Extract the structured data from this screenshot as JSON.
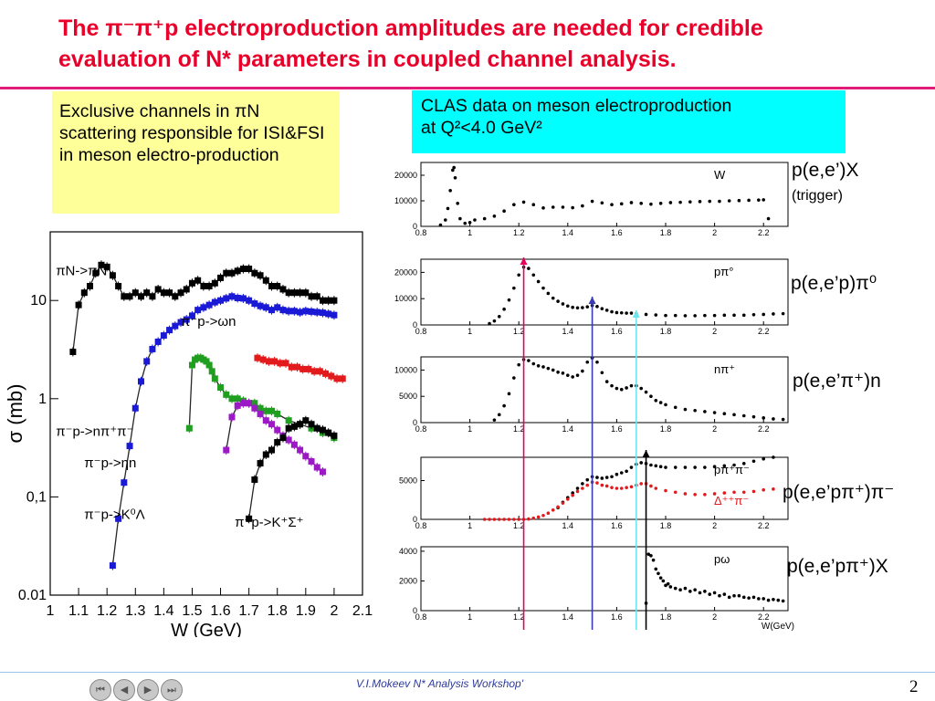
{
  "title": {
    "line1": "The π⁻π⁺p electroproduction amplitudes are needed  for  credible",
    "line2": "evaluation of N* parameters in coupled channel analysis."
  },
  "callouts": {
    "left": "Exclusive channels  in πN scattering  responsible for ISI&FSI in  meson electro-production",
    "right_line1": "CLAS data on meson electroproduction",
    "right_line2": "at Q²<4.0 GeV²"
  },
  "side_labels": {
    "p1": "p(e,e’)X",
    "p1_sub": "(trigger)",
    "p2": "p(e,e’p)π⁰",
    "p3": "p(e,e’π⁺)n",
    "p4": "p(e,e’pπ⁺)π⁻",
    "p5": "p(e,e’pπ⁺)X"
  },
  "footer": {
    "text": "V.I.Mokeev  N* Analysis Workshop'",
    "page": "2"
  },
  "colors": {
    "title": "#e8002a",
    "rule": "#e01b7c",
    "yellow_box": "#ffff99",
    "cyan_box": "#00ffff",
    "marker_pink": "#e8005a",
    "marker_blue": "#3b3bb0",
    "marker_cyan": "#6ee6f0",
    "marker_black": "#000000"
  },
  "chart_data": [
    {
      "type": "scatter",
      "panel": "piN-cross-sections",
      "title": "",
      "xlabel": "W (GeV)",
      "ylabel": "σ (mb)",
      "xlim": [
        1.0,
        2.1
      ],
      "ylim": [
        0.01,
        50
      ],
      "yscale": "log",
      "xticks": [
        "1",
        "1.1",
        "1.2",
        "1.3",
        "1.4",
        "1.5",
        "1.6",
        "1.7",
        "1.8",
        "1.9",
        "2",
        "2.1"
      ],
      "yticks": [
        "0.01",
        "0,1",
        "1",
        "10"
      ],
      "ytick_values": [
        0.01,
        0.1,
        1,
        10
      ],
      "series": [
        {
          "name": "πN->πN",
          "color": "#000000",
          "x": [
            1.08,
            1.1,
            1.12,
            1.14,
            1.16,
            1.18,
            1.2,
            1.22,
            1.24,
            1.26,
            1.28,
            1.3,
            1.32,
            1.34,
            1.36,
            1.38,
            1.4,
            1.42,
            1.44,
            1.46,
            1.48,
            1.5,
            1.52,
            1.54,
            1.56,
            1.58,
            1.6,
            1.62,
            1.64,
            1.66,
            1.68,
            1.7,
            1.72,
            1.74,
            1.76,
            1.78,
            1.8,
            1.82,
            1.84,
            1.86,
            1.88,
            1.9,
            1.92,
            1.94,
            1.96,
            1.98,
            2.0
          ],
          "y": [
            3,
            9,
            12,
            14,
            19,
            23,
            22,
            18,
            14,
            11,
            11,
            12,
            11,
            12,
            11,
            13,
            12,
            12,
            11,
            12,
            13,
            15,
            16,
            14,
            14,
            15,
            17,
            19,
            19,
            20,
            21,
            21,
            19,
            18,
            16,
            14,
            14,
            13,
            12,
            12,
            12,
            12,
            11,
            11,
            10,
            10,
            10
          ]
        },
        {
          "name": "π⁻p->nπ⁺π⁻",
          "color": "#1a1ad6",
          "x": [
            1.22,
            1.24,
            1.26,
            1.28,
            1.3,
            1.32,
            1.34,
            1.36,
            1.38,
            1.4,
            1.42,
            1.44,
            1.46,
            1.48,
            1.5,
            1.52,
            1.54,
            1.56,
            1.58,
            1.6,
            1.62,
            1.64,
            1.66,
            1.68,
            1.7,
            1.72,
            1.74,
            1.76,
            1.78,
            1.8,
            1.82,
            1.84,
            1.86,
            1.88,
            1.9,
            1.92,
            1.94,
            1.96,
            1.98,
            2.0
          ],
          "y": [
            0.02,
            0.06,
            0.14,
            0.33,
            0.8,
            1.5,
            2.4,
            3.2,
            3.8,
            4.4,
            5,
            5.5,
            6,
            6.4,
            7,
            8,
            8.5,
            9,
            9.6,
            10,
            10.5,
            11,
            10.6,
            10.5,
            10,
            9.3,
            8.8,
            8.5,
            8,
            8.5,
            8,
            7.8,
            7.8,
            7.6,
            7.8,
            7.7,
            7.6,
            7.5,
            7.3,
            7.1
          ]
        },
        {
          "name": "π⁻p->ωn",
          "color": "#e31a1c",
          "x": [
            1.73,
            1.75,
            1.77,
            1.79,
            1.81,
            1.83,
            1.85,
            1.87,
            1.89,
            1.91,
            1.93,
            1.95,
            1.97,
            1.99,
            2.01,
            2.03
          ],
          "y": [
            2.6,
            2.5,
            2.4,
            2.4,
            2.3,
            2.3,
            2.1,
            2.1,
            2.0,
            2.0,
            1.9,
            1.9,
            1.8,
            1.7,
            1.6,
            1.6
          ]
        },
        {
          "name": "π⁻p->ηn",
          "color": "#1f9e1f",
          "x": [
            1.49,
            1.5,
            1.51,
            1.52,
            1.53,
            1.54,
            1.55,
            1.56,
            1.57,
            1.58,
            1.6,
            1.62,
            1.64,
            1.66,
            1.68,
            1.7,
            1.72,
            1.74,
            1.76,
            1.78,
            1.8,
            1.84,
            1.88,
            1.92,
            1.96,
            2.0
          ],
          "y": [
            0.5,
            2.2,
            2.5,
            2.6,
            2.6,
            2.5,
            2.4,
            2.2,
            1.9,
            1.6,
            1.3,
            1.1,
            1.0,
            1.0,
            0.95,
            0.9,
            0.9,
            0.8,
            0.75,
            0.75,
            0.7,
            0.6,
            0.55,
            0.5,
            0.45,
            0.4
          ]
        },
        {
          "name": "π⁻p->K⁰Λ",
          "color": "#9b1ac6",
          "x": [
            1.62,
            1.64,
            1.66,
            1.68,
            1.7,
            1.72,
            1.74,
            1.76,
            1.78,
            1.8,
            1.82,
            1.84,
            1.86,
            1.88,
            1.9,
            1.92,
            1.94,
            1.96
          ],
          "y": [
            0.3,
            0.65,
            0.85,
            0.9,
            0.9,
            0.8,
            0.7,
            0.6,
            0.55,
            0.48,
            0.42,
            0.38,
            0.34,
            0.3,
            0.26,
            0.23,
            0.2,
            0.18
          ]
        },
        {
          "name": "π⁺p->K⁺Σ⁺",
          "color": "#000000",
          "x": [
            1.7,
            1.72,
            1.74,
            1.76,
            1.78,
            1.8,
            1.82,
            1.84,
            1.86,
            1.88,
            1.9,
            1.92,
            1.94,
            1.96,
            1.98,
            2.0
          ],
          "y": [
            0.06,
            0.15,
            0.22,
            0.27,
            0.3,
            0.36,
            0.4,
            0.5,
            0.52,
            0.55,
            0.6,
            0.55,
            0.5,
            0.48,
            0.45,
            0.42
          ]
        }
      ],
      "annotations": [
        "πN->πN",
        "π⁻p->ωn",
        "π⁻p->nπ⁺π⁻",
        "π⁻p->ηn",
        "π⁻p->K⁰Λ",
        "π⁺p->K⁺Σ⁺"
      ]
    },
    {
      "type": "scatter",
      "panel": "W",
      "label": "W",
      "xlim": [
        0.8,
        2.3
      ],
      "ylim": [
        0,
        25000
      ],
      "xticks": [
        "0.8",
        "1",
        "1.2",
        "1.4",
        "1.6",
        "1.8",
        "2",
        "2.2"
      ],
      "yticks": [
        "0",
        "10000",
        "20000"
      ],
      "ytick_values": [
        0,
        10000,
        20000
      ],
      "x": [
        0.88,
        0.9,
        0.91,
        0.92,
        0.93,
        0.935,
        0.94,
        0.95,
        0.96,
        0.98,
        1.0,
        1.02,
        1.06,
        1.1,
        1.14,
        1.18,
        1.22,
        1.26,
        1.3,
        1.34,
        1.38,
        1.42,
        1.46,
        1.5,
        1.54,
        1.58,
        1.62,
        1.66,
        1.7,
        1.74,
        1.78,
        1.82,
        1.86,
        1.9,
        1.94,
        1.98,
        2.02,
        2.06,
        2.1,
        2.14,
        2.18,
        2.2,
        2.22
      ],
      "y": [
        500,
        2500,
        7000,
        14000,
        22000,
        23000,
        19000,
        9000,
        3000,
        1200,
        1500,
        2500,
        3000,
        4000,
        6000,
        8500,
        9500,
        8500,
        7200,
        7500,
        7500,
        7300,
        8000,
        9800,
        9200,
        8500,
        8800,
        9300,
        9000,
        8700,
        9000,
        9300,
        9400,
        9600,
        9700,
        9800,
        9800,
        10000,
        10100,
        10200,
        10300,
        10400,
        3000
      ]
    },
    {
      "type": "scatter",
      "panel": "pπ⁰",
      "label": "pπ°",
      "xlim": [
        0.8,
        2.3
      ],
      "ylim": [
        0,
        25000
      ],
      "xticks": [
        "0.8",
        "1",
        "1.2",
        "1.4",
        "1.6",
        "1.8",
        "2",
        "2.2"
      ],
      "yticks": [
        "0",
        "10000",
        "20000"
      ],
      "ytick_values": [
        0,
        10000,
        20000
      ],
      "x": [
        1.08,
        1.1,
        1.12,
        1.14,
        1.16,
        1.18,
        1.2,
        1.22,
        1.24,
        1.26,
        1.28,
        1.3,
        1.32,
        1.34,
        1.36,
        1.38,
        1.4,
        1.42,
        1.44,
        1.46,
        1.48,
        1.5,
        1.52,
        1.54,
        1.56,
        1.58,
        1.6,
        1.62,
        1.64,
        1.66,
        1.68,
        1.72,
        1.76,
        1.8,
        1.84,
        1.88,
        1.92,
        1.96,
        2.0,
        2.04,
        2.08,
        2.12,
        2.16,
        2.2,
        2.24,
        2.28
      ],
      "y": [
        500,
        1500,
        3200,
        6000,
        9500,
        14000,
        19000,
        22000,
        21500,
        19000,
        16500,
        14000,
        12000,
        10200,
        9000,
        8000,
        7200,
        6700,
        6500,
        6600,
        6900,
        7400,
        7000,
        6200,
        5600,
        5000,
        4700,
        4600,
        4500,
        4500,
        4300,
        4000,
        3800,
        3600,
        3600,
        3500,
        3500,
        3600,
        3600,
        3700,
        3700,
        3700,
        3900,
        4000,
        4200,
        4300
      ]
    },
    {
      "type": "scatter",
      "panel": "nπ⁺",
      "label": "nπ⁺",
      "xlim": [
        0.8,
        2.3
      ],
      "ylim": [
        0,
        12500
      ],
      "xticks": [
        "0.8",
        "1",
        "1.2",
        "1.4",
        "1.6",
        "1.8",
        "2",
        "2.2"
      ],
      "yticks": [
        "0",
        "5000",
        "10000"
      ],
      "ytick_values": [
        0,
        5000,
        10000
      ],
      "x": [
        1.1,
        1.12,
        1.14,
        1.16,
        1.18,
        1.2,
        1.22,
        1.24,
        1.26,
        1.28,
        1.3,
        1.32,
        1.34,
        1.36,
        1.38,
        1.4,
        1.42,
        1.44,
        1.46,
        1.48,
        1.5,
        1.52,
        1.54,
        1.56,
        1.58,
        1.6,
        1.62,
        1.64,
        1.66,
        1.68,
        1.7,
        1.72,
        1.74,
        1.76,
        1.78,
        1.8,
        1.84,
        1.88,
        1.92,
        1.96,
        2.0,
        2.04,
        2.08,
        2.12,
        2.16,
        2.2,
        2.24,
        2.28
      ],
      "y": [
        500,
        1500,
        3200,
        5500,
        8500,
        11000,
        12000,
        11800,
        11200,
        10800,
        10600,
        10300,
        10000,
        9600,
        9400,
        9000,
        8700,
        9000,
        9800,
        11500,
        12300,
        11500,
        9500,
        7800,
        7000,
        6500,
        6300,
        6600,
        7000,
        7000,
        6500,
        5800,
        5000,
        4200,
        3800,
        3400,
        2900,
        2500,
        2300,
        2100,
        1900,
        1700,
        1500,
        1300,
        1100,
        900,
        700,
        600
      ]
    },
    {
      "type": "scatter",
      "panel": "pπ⁺π⁻",
      "label": "pπ⁺π⁻",
      "xlim": [
        0.8,
        2.3
      ],
      "ylim": [
        0,
        8000
      ],
      "xticks": [
        "0.8",
        "1",
        "1.2",
        "1.4",
        "1.6",
        "1.8",
        "2",
        "2.2"
      ],
      "yticks": [
        "0",
        "5000"
      ],
      "ytick_values": [
        0,
        5000
      ],
      "series": [
        {
          "name": "pπ⁺π⁻",
          "color": "#000000",
          "x": [
            1.36,
            1.38,
            1.4,
            1.42,
            1.44,
            1.46,
            1.48,
            1.5,
            1.52,
            1.54,
            1.56,
            1.58,
            1.6,
            1.62,
            1.64,
            1.66,
            1.68,
            1.7,
            1.72,
            1.74,
            1.76,
            1.78,
            1.8,
            1.84,
            1.88,
            1.92,
            1.96,
            2.0,
            2.04,
            2.08,
            2.12,
            2.16,
            2.2,
            2.24
          ],
          "y": [
            1500,
            2200,
            2800,
            3400,
            4000,
            4600,
            5100,
            5500,
            5400,
            5300,
            5400,
            5500,
            5800,
            6000,
            6200,
            6700,
            7100,
            7300,
            7200,
            7000,
            6900,
            6800,
            6700,
            6700,
            6700,
            6700,
            6700,
            6800,
            6900,
            7000,
            7200,
            7500,
            7800,
            8000
          ]
        },
        {
          "name": "Δ⁺⁺π⁻",
          "color": "#e31a1c",
          "x": [
            1.06,
            1.08,
            1.1,
            1.12,
            1.14,
            1.16,
            1.18,
            1.2,
            1.22,
            1.24,
            1.26,
            1.28,
            1.3,
            1.32,
            1.34,
            1.36,
            1.38,
            1.4,
            1.42,
            1.44,
            1.46,
            1.48,
            1.5,
            1.52,
            1.54,
            1.56,
            1.58,
            1.6,
            1.62,
            1.64,
            1.66,
            1.68,
            1.7,
            1.72,
            1.74,
            1.76,
            1.8,
            1.84,
            1.88,
            1.92,
            1.96,
            2.0,
            2.04,
            2.08,
            2.12,
            2.16,
            2.2,
            2.24
          ],
          "y": [
            0,
            0,
            0,
            0,
            0,
            0,
            0,
            0,
            0,
            50,
            150,
            300,
            500,
            800,
            1200,
            1600,
            2100,
            2600,
            3100,
            3600,
            4000,
            4400,
            4800,
            4700,
            4400,
            4300,
            4100,
            4000,
            4000,
            4100,
            4200,
            4400,
            4600,
            4600,
            4300,
            4000,
            3700,
            3500,
            3300,
            3200,
            3200,
            3300,
            3400,
            3500,
            3500,
            3600,
            3800,
            3900
          ]
        }
      ],
      "legend": [
        "pπ⁺π⁻",
        "Δ⁺⁺π⁻"
      ]
    },
    {
      "type": "scatter",
      "panel": "pω",
      "label": "pω",
      "xlabel": "W(GeV)",
      "xlim": [
        0.8,
        2.3
      ],
      "ylim": [
        0,
        4300
      ],
      "xticks": [
        "0.8",
        "1",
        "1.2",
        "1.4",
        "1.6",
        "1.8",
        "2",
        "2.2"
      ],
      "yticks": [
        "0",
        "2000",
        "4000"
      ],
      "ytick_values": [
        0,
        2000,
        4000
      ],
      "x": [
        1.72,
        1.73,
        1.74,
        1.75,
        1.76,
        1.77,
        1.78,
        1.79,
        1.8,
        1.81,
        1.82,
        1.84,
        1.86,
        1.88,
        1.9,
        1.92,
        1.94,
        1.96,
        1.98,
        2.0,
        2.02,
        2.04,
        2.06,
        2.08,
        2.1,
        2.12,
        2.14,
        2.16,
        2.18,
        2.2,
        2.22,
        2.24,
        2.26,
        2.28
      ],
      "y": [
        500,
        3800,
        3700,
        3400,
        2800,
        2500,
        2200,
        2000,
        1700,
        1800,
        1600,
        1500,
        1400,
        1500,
        1300,
        1400,
        1200,
        1300,
        1100,
        1200,
        1000,
        1100,
        900,
        1000,
        1000,
        900,
        850,
        900,
        800,
        800,
        700,
        750,
        700,
        650
      ]
    }
  ],
  "markers": [
    {
      "name": "W≈1.22 (P33(1232))",
      "x": 1.22,
      "color": "#e8005a"
    },
    {
      "name": "W≈1.50",
      "x": 1.5,
      "color": "#3b3bb0"
    },
    {
      "name": "W≈1.68",
      "x": 1.68,
      "color": "#6ee6f0"
    },
    {
      "name": "W≈1.72",
      "x": 1.72,
      "color": "#000000"
    }
  ]
}
